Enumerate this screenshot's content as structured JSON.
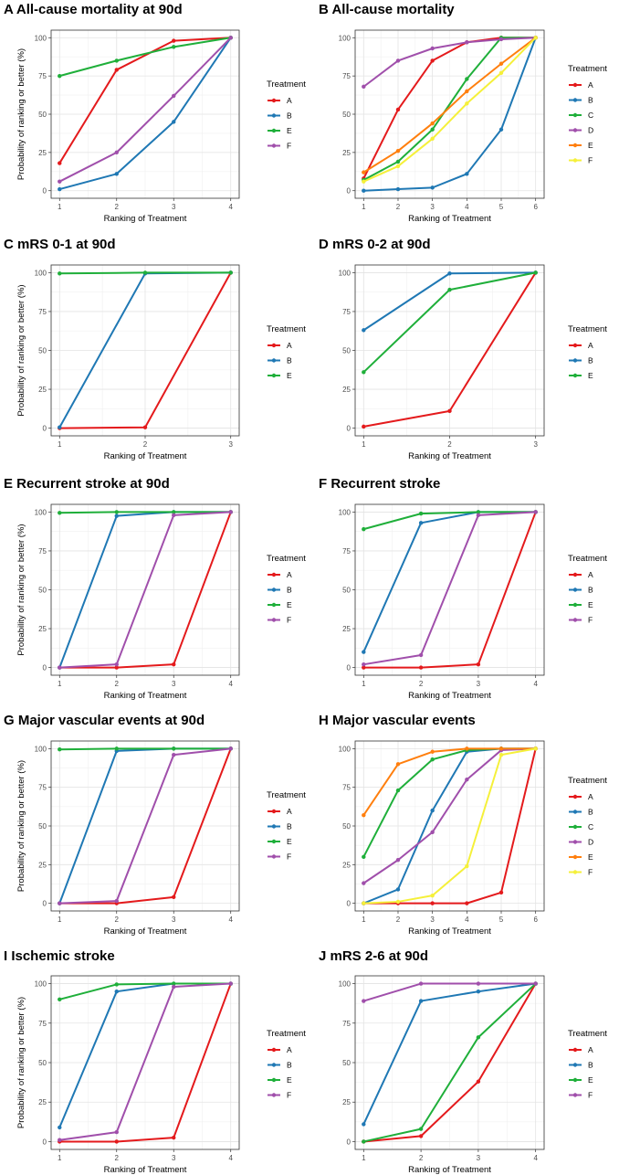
{
  "colors": {
    "A": "#E41A1C",
    "B": "#1F78B4",
    "C": "#1FAF3A",
    "D": "#A04FAB",
    "E": "#FF7F0E",
    "F": "#F5F03A",
    "E_green": "#1FAF3A",
    "F_purple": "#A04FAB"
  },
  "chart_data": [
    {
      "id": "A",
      "type": "line",
      "title": "A All-cause mortality at 90d",
      "xlabel": "Ranking of Treatment",
      "ylabel": "Probability of ranking or better (%)",
      "legend_title": "Treatment",
      "x": [
        1,
        2,
        3,
        4
      ],
      "ylim": [
        0,
        100
      ],
      "yticks": [
        0,
        25,
        50,
        75,
        100
      ],
      "series": [
        {
          "name": "A",
          "color": "#E41A1C",
          "values": [
            18,
            79,
            98,
            100
          ]
        },
        {
          "name": "B",
          "color": "#1F78B4",
          "values": [
            1,
            11,
            45,
            100
          ]
        },
        {
          "name": "E",
          "color": "#1FAF3A",
          "values": [
            75,
            85,
            94,
            100
          ]
        },
        {
          "name": "F",
          "color": "#A04FAB",
          "values": [
            6,
            25,
            62,
            100
          ]
        }
      ]
    },
    {
      "id": "B",
      "type": "line",
      "title": "B All-cause mortality",
      "xlabel": "Ranking of Treatment",
      "ylabel": "",
      "legend_title": "Treatment",
      "x": [
        1,
        2,
        3,
        4,
        5,
        6
      ],
      "ylim": [
        0,
        100
      ],
      "yticks": [
        0,
        25,
        50,
        75,
        100
      ],
      "series": [
        {
          "name": "A",
          "color": "#E41A1C",
          "values": [
            8,
            53,
            85,
            97,
            100,
            100
          ]
        },
        {
          "name": "B",
          "color": "#1F78B4",
          "values": [
            0,
            1,
            2,
            11,
            40,
            100
          ]
        },
        {
          "name": "C",
          "color": "#1FAF3A",
          "values": [
            7,
            19,
            40,
            73,
            100,
            100
          ]
        },
        {
          "name": "D",
          "color": "#A04FAB",
          "values": [
            68,
            85,
            93,
            97,
            99,
            100
          ]
        },
        {
          "name": "E",
          "color": "#FF7F0E",
          "values": [
            12,
            26,
            44,
            65,
            83,
            100
          ]
        },
        {
          "name": "F",
          "color": "#F5F03A",
          "values": [
            6,
            16,
            34,
            57,
            77,
            100
          ]
        }
      ]
    },
    {
      "id": "C",
      "type": "line",
      "title": "C mRS 0-1 at 90d",
      "xlabel": "Ranking of Treatment",
      "ylabel": "Probability of ranking or better (%)",
      "legend_title": "Treatment",
      "x": [
        1,
        2,
        3
      ],
      "ylim": [
        0,
        100
      ],
      "yticks": [
        0,
        25,
        50,
        75,
        100
      ],
      "series": [
        {
          "name": "A",
          "color": "#E41A1C",
          "values": [
            0,
            0.5,
            100
          ]
        },
        {
          "name": "B",
          "color": "#1F78B4",
          "values": [
            0.5,
            99.5,
            100
          ]
        },
        {
          "name": "E",
          "color": "#1FAF3A",
          "values": [
            99.5,
            100,
            100
          ]
        }
      ]
    },
    {
      "id": "D",
      "type": "line",
      "title": "D mRS 0-2 at 90d",
      "xlabel": "Ranking of Treatment",
      "ylabel": "",
      "legend_title": "Treatment",
      "x": [
        1,
        2,
        3
      ],
      "ylim": [
        0,
        100
      ],
      "yticks": [
        0,
        25,
        50,
        75,
        100
      ],
      "series": [
        {
          "name": "A",
          "color": "#E41A1C",
          "values": [
            1,
            11,
            100
          ]
        },
        {
          "name": "B",
          "color": "#1F78B4",
          "values": [
            63,
            99.5,
            100
          ]
        },
        {
          "name": "E",
          "color": "#1FAF3A",
          "values": [
            36,
            89,
            100
          ]
        }
      ]
    },
    {
      "id": "E",
      "type": "line",
      "title": "E Recurrent stroke at 90d",
      "xlabel": "Ranking of Treatment",
      "ylabel": "Probability of ranking or better (%)",
      "legend_title": "Treatment",
      "x": [
        1,
        2,
        3,
        4
      ],
      "ylim": [
        0,
        100
      ],
      "yticks": [
        0,
        25,
        50,
        75,
        100
      ],
      "series": [
        {
          "name": "A",
          "color": "#E41A1C",
          "values": [
            0,
            0,
            2,
            100
          ]
        },
        {
          "name": "B",
          "color": "#1F78B4",
          "values": [
            0,
            97.5,
            100,
            100
          ]
        },
        {
          "name": "E",
          "color": "#1FAF3A",
          "values": [
            99.5,
            100,
            100,
            100
          ]
        },
        {
          "name": "F",
          "color": "#A04FAB",
          "values": [
            0,
            2,
            98,
            100
          ]
        }
      ]
    },
    {
      "id": "F",
      "type": "line",
      "title": "F Recurrent stroke",
      "xlabel": "Ranking of Treatment",
      "ylabel": "",
      "legend_title": "Treatment",
      "x": [
        1,
        2,
        3,
        4
      ],
      "ylim": [
        0,
        100
      ],
      "yticks": [
        0,
        25,
        50,
        75,
        100
      ],
      "series": [
        {
          "name": "A",
          "color": "#E41A1C",
          "values": [
            0,
            0,
            2,
            100
          ]
        },
        {
          "name": "B",
          "color": "#1F78B4",
          "values": [
            10,
            93,
            100,
            100
          ]
        },
        {
          "name": "E",
          "color": "#1FAF3A",
          "values": [
            89,
            99,
            100,
            100
          ]
        },
        {
          "name": "F",
          "color": "#A04FAB",
          "values": [
            2,
            8,
            98,
            100
          ]
        }
      ]
    },
    {
      "id": "G",
      "type": "line",
      "title": "G Major vascular events at 90d",
      "xlabel": "Ranking of Treatment",
      "ylabel": "Probability of ranking or better (%)",
      "legend_title": "Treatment",
      "x": [
        1,
        2,
        3,
        4
      ],
      "ylim": [
        0,
        100
      ],
      "yticks": [
        0,
        25,
        50,
        75,
        100
      ],
      "series": [
        {
          "name": "A",
          "color": "#E41A1C",
          "values": [
            0,
            0,
            4,
            100
          ]
        },
        {
          "name": "B",
          "color": "#1F78B4",
          "values": [
            0,
            98.5,
            100,
            100
          ]
        },
        {
          "name": "E",
          "color": "#1FAF3A",
          "values": [
            99.5,
            100,
            100,
            100
          ]
        },
        {
          "name": "F",
          "color": "#A04FAB",
          "values": [
            0,
            1.5,
            96,
            100
          ]
        }
      ]
    },
    {
      "id": "H",
      "type": "line",
      "title": "H Major vascular events",
      "xlabel": "Ranking of Treatment",
      "ylabel": "",
      "legend_title": "Treatment",
      "x": [
        1,
        2,
        3,
        4,
        5,
        6
      ],
      "ylim": [
        0,
        100
      ],
      "yticks": [
        0,
        25,
        50,
        75,
        100
      ],
      "series": [
        {
          "name": "A",
          "color": "#E41A1C",
          "values": [
            0,
            0,
            0,
            0,
            7,
            100
          ]
        },
        {
          "name": "B",
          "color": "#1F78B4",
          "values": [
            0,
            9,
            60,
            98,
            100,
            100
          ]
        },
        {
          "name": "C",
          "color": "#1FAF3A",
          "values": [
            30,
            73,
            93,
            99,
            100,
            100
          ]
        },
        {
          "name": "D",
          "color": "#A04FAB",
          "values": [
            13,
            28,
            46,
            80,
            99,
            100
          ]
        },
        {
          "name": "E",
          "color": "#FF7F0E",
          "values": [
            57,
            90,
            98,
            100,
            100,
            100
          ]
        },
        {
          "name": "F",
          "color": "#F5F03A",
          "values": [
            0,
            1,
            5,
            24,
            96,
            100
          ]
        }
      ]
    },
    {
      "id": "I",
      "type": "line",
      "title": "I Ischemic stroke",
      "xlabel": "Ranking of Treatment",
      "ylabel": "Probability of ranking or better (%)",
      "legend_title": "Treatment",
      "x": [
        1,
        2,
        3,
        4
      ],
      "ylim": [
        0,
        100
      ],
      "yticks": [
        0,
        25,
        50,
        75,
        100
      ],
      "series": [
        {
          "name": "A",
          "color": "#E41A1C",
          "values": [
            0,
            0,
            2.5,
            100
          ]
        },
        {
          "name": "B",
          "color": "#1F78B4",
          "values": [
            9,
            95,
            100,
            100
          ]
        },
        {
          "name": "E",
          "color": "#1FAF3A",
          "values": [
            90,
            99.5,
            100,
            100
          ]
        },
        {
          "name": "F",
          "color": "#A04FAB",
          "values": [
            1,
            6,
            98,
            100
          ]
        }
      ]
    },
    {
      "id": "J",
      "type": "line",
      "title": "J mRS 2-6 at 90d",
      "xlabel": "Ranking of Treatment",
      "ylabel": "",
      "legend_title": "Treatment",
      "x": [
        1,
        2,
        3,
        4
      ],
      "ylim": [
        0,
        100
      ],
      "yticks": [
        0,
        25,
        50,
        75,
        100
      ],
      "series": [
        {
          "name": "A",
          "color": "#E41A1C",
          "values": [
            0,
            3.5,
            38,
            100
          ]
        },
        {
          "name": "B",
          "color": "#1F78B4",
          "values": [
            11,
            89,
            95,
            100
          ]
        },
        {
          "name": "E",
          "color": "#1FAF3A",
          "values": [
            0,
            8,
            66,
            100
          ]
        },
        {
          "name": "F",
          "color": "#A04FAB",
          "values": [
            89,
            100,
            100,
            100
          ]
        }
      ]
    }
  ]
}
